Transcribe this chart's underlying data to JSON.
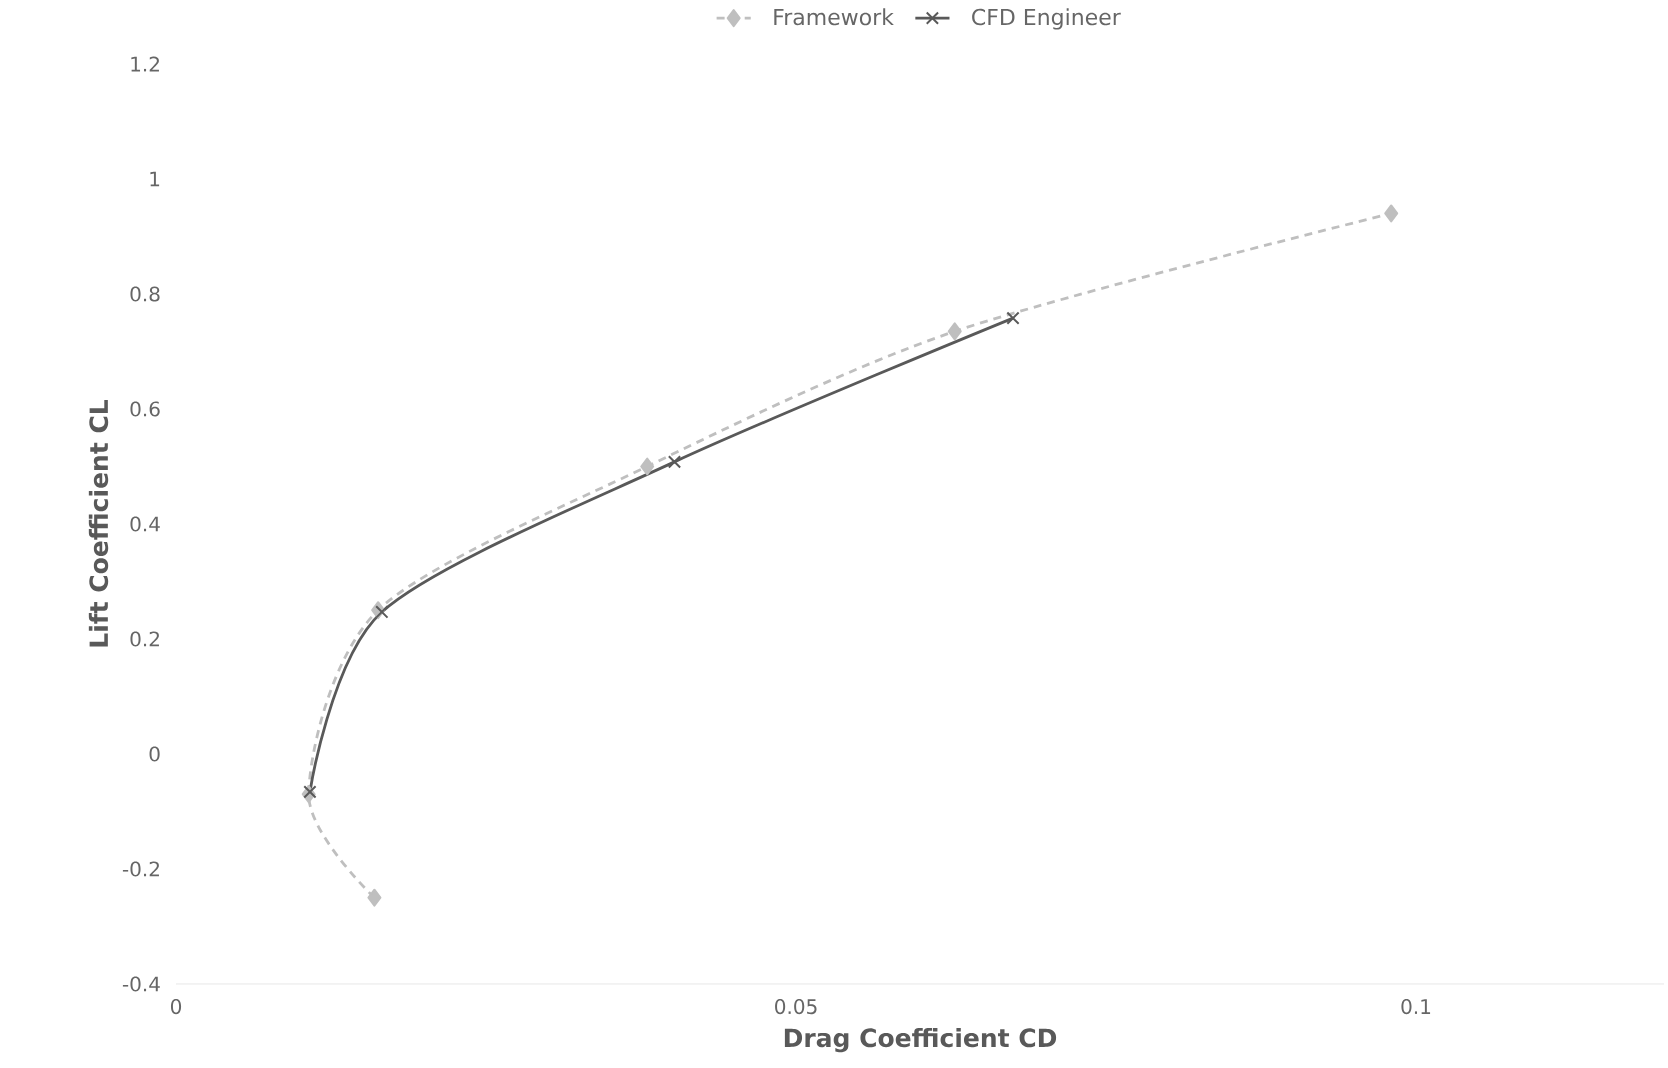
{
  "chart_data": {
    "type": "line",
    "xlabel": "Drag Coefficient CD",
    "ylabel": "Lift Coefficient CL",
    "xlim": [
      0,
      0.12
    ],
    "xticks": [
      0,
      0.05,
      0.1
    ],
    "ylim": [
      -0.4,
      1.2
    ],
    "yticks": [
      -0.4,
      -0.2,
      0,
      0.2,
      0.4,
      0.6,
      0.8,
      1,
      1.2
    ],
    "grid": false,
    "legend": "top",
    "series": [
      {
        "name": "Framework",
        "color": "#bfbfbf",
        "marker": "diamond",
        "line_style": "dashed",
        "x": [
          0.016,
          0.0107,
          0.0163,
          0.038,
          0.0628,
          0.098
        ],
        "values": [
          -0.25,
          -0.07,
          0.25,
          0.5,
          0.735,
          0.94
        ]
      },
      {
        "name": "CFD Engineer",
        "color": "#595959",
        "marker": "cross",
        "line_style": "solid",
        "x": [
          0.0108,
          0.0166,
          0.0402,
          0.0675
        ],
        "values": [
          -0.066,
          0.247,
          0.508,
          0.758
        ]
      }
    ]
  }
}
